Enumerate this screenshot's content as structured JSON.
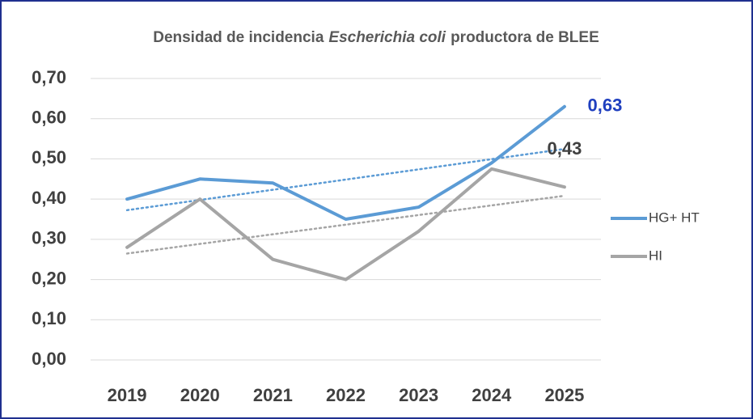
{
  "chart_data": {
    "type": "line",
    "title": [
      "Densidad de incidencia",
      "Escherichia coli",
      "productora de BLEE"
    ],
    "title_italic": [
      false,
      true,
      false
    ],
    "categories": [
      "2019",
      "2020",
      "2021",
      "2022",
      "2023",
      "2024",
      "2025"
    ],
    "series": [
      {
        "name": "HG+ HT",
        "color": "#5b9bd5",
        "label_color": "#1f3fbf",
        "values": [
          0.4,
          0.45,
          0.44,
          0.35,
          0.38,
          0.49,
          0.63
        ],
        "value_labels": [
          null,
          null,
          null,
          null,
          null,
          null,
          "0,63"
        ]
      },
      {
        "name": "HI",
        "color": "#a5a5a5",
        "label_color": "#404040",
        "values": [
          0.28,
          0.4,
          0.25,
          0.2,
          0.32,
          0.475,
          0.43
        ],
        "value_labels": [
          null,
          null,
          null,
          null,
          null,
          null,
          "0,43"
        ]
      }
    ],
    "ylim": [
      0,
      0.7
    ],
    "yticks": [
      {
        "value": 0,
        "label": "0,00"
      },
      {
        "value": 0.1,
        "label": "0,10"
      },
      {
        "value": 0.2,
        "label": "0,20"
      },
      {
        "value": 0.3,
        "label": "0,30"
      },
      {
        "value": 0.4,
        "label": "0,40"
      },
      {
        "value": 0.5,
        "label": "0,50"
      },
      {
        "value": 0.6,
        "label": "0,60"
      },
      {
        "value": 0.7,
        "label": "0,70"
      }
    ],
    "grid": true,
    "trendline": true,
    "legend": "right"
  }
}
